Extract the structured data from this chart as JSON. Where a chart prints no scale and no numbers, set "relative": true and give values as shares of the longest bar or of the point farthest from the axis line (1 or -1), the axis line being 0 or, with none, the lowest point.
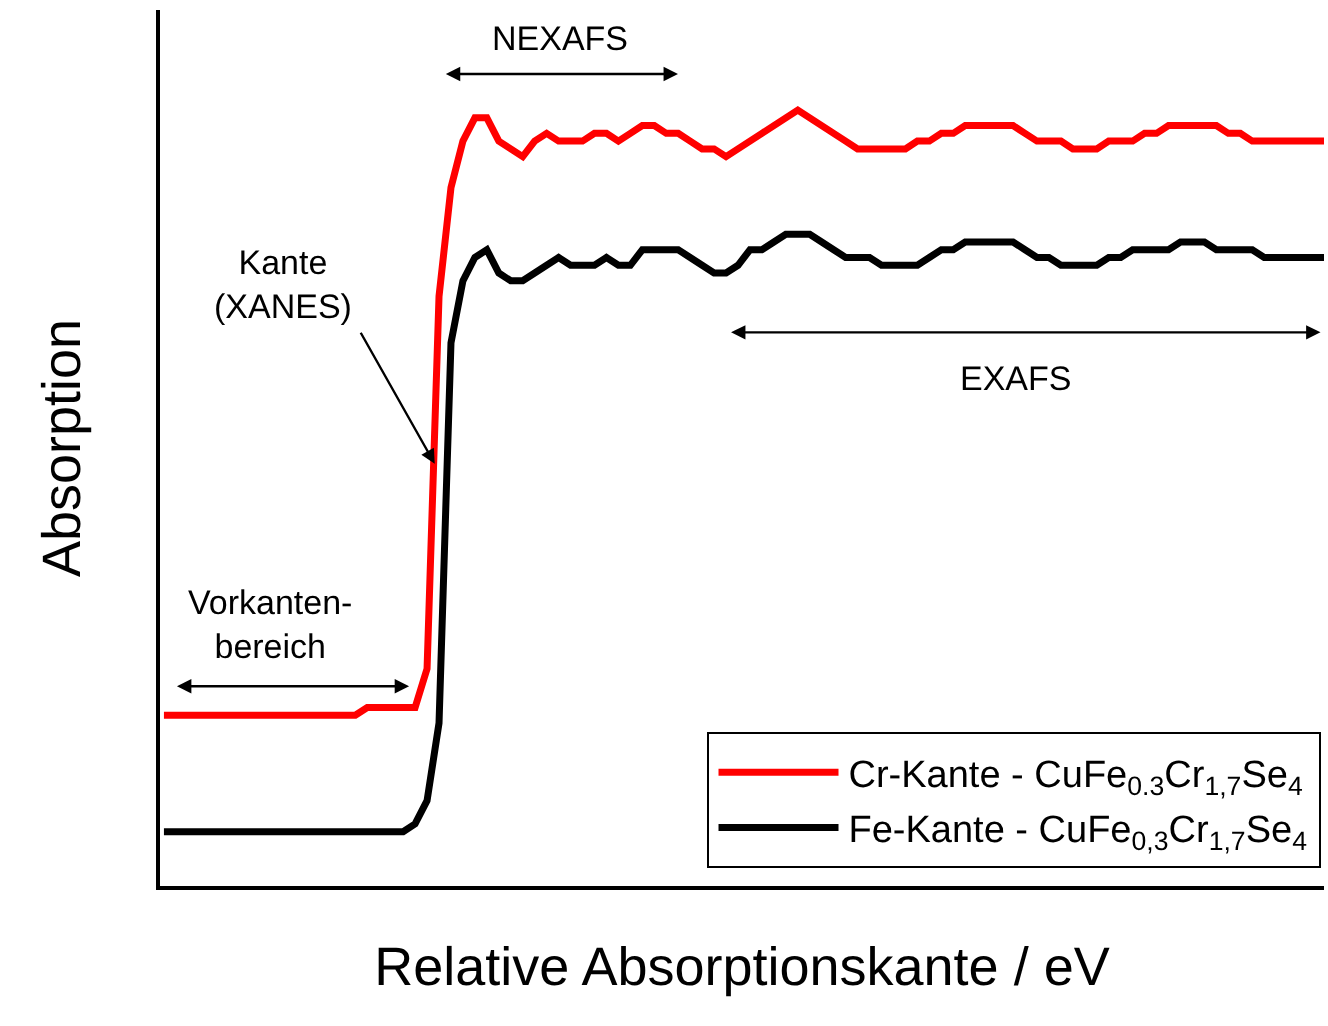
{
  "chart_data": {
    "type": "line",
    "relative": true,
    "tick_labels": false,
    "legend": "bottom right",
    "xlabel": "Relative Absorptionskante / eV",
    "ylabel": "Absorption",
    "annotations": [
      "NEXAFS",
      "Kante\n(XANES)",
      "EXAFS",
      "Vorkanten-\nbereich"
    ],
    "categories": [
      null,
      null,
      null,
      null,
      null,
      null,
      null,
      null,
      null,
      null,
      null,
      null,
      null,
      null,
      null,
      null,
      null,
      null,
      null,
      null,
      null,
      null,
      null,
      null,
      null,
      null,
      null,
      null,
      null,
      null,
      null,
      null,
      null,
      null,
      null,
      null,
      null,
      null,
      null,
      null,
      null,
      null,
      null,
      null,
      null,
      null,
      null,
      null,
      null,
      null,
      null,
      null,
      null,
      null,
      null,
      null,
      null,
      null,
      null,
      null,
      null,
      null,
      null,
      null,
      null,
      null,
      null,
      null,
      null,
      null,
      null,
      null,
      null,
      null,
      null,
      null,
      null,
      null,
      null,
      null,
      null,
      null,
      null,
      null,
      null,
      null,
      null,
      null,
      null,
      null,
      null,
      null,
      null,
      null,
      null,
      null,
      null,
      null
    ],
    "series": [
      {
        "name": "Cr-Kante - CuFe$_{0.3}$Cr$_{1,7}$Se$_{4}$",
        "color": "#ff0000",
        "values": [
          0.22,
          0.22,
          0.22,
          0.22,
          0.22,
          0.22,
          0.22,
          0.22,
          0.22,
          0.22,
          0.22,
          0.22,
          0.22,
          0.22,
          0.22,
          0.22,
          0.22,
          0.23,
          0.23,
          0.23,
          0.23,
          0.23,
          0.28,
          0.76,
          0.9,
          0.96,
          0.99,
          0.99,
          0.96,
          0.95,
          0.94,
          0.96,
          0.97,
          0.96,
          0.96,
          0.96,
          0.97,
          0.97,
          0.96,
          0.97,
          0.98,
          0.98,
          0.97,
          0.97,
          0.96,
          0.95,
          0.95,
          0.94,
          0.95,
          0.96,
          0.97,
          0.98,
          0.99,
          1.0,
          0.99,
          0.98,
          0.97,
          0.96,
          0.95,
          0.95,
          0.95,
          0.95,
          0.95,
          0.96,
          0.96,
          0.97,
          0.97,
          0.98,
          0.98,
          0.98,
          0.98,
          0.98,
          0.97,
          0.96,
          0.96,
          0.96,
          0.95,
          0.95,
          0.95,
          0.96,
          0.96,
          0.96,
          0.97,
          0.97,
          0.98,
          0.98,
          0.98,
          0.98,
          0.98,
          0.97,
          0.97,
          0.96,
          0.96,
          0.96,
          0.96,
          0.96,
          0.96,
          0.96
        ]
      },
      {
        "name": "Fe-Kante - CuFe$_{0,3}$Cr$_{1,7}$Se$_{4}$",
        "color": "#000000",
        "values": [
          0.07,
          0.07,
          0.07,
          0.07,
          0.07,
          0.07,
          0.07,
          0.07,
          0.07,
          0.07,
          0.07,
          0.07,
          0.07,
          0.07,
          0.07,
          0.07,
          0.07,
          0.07,
          0.07,
          0.07,
          0.07,
          0.08,
          0.11,
          0.21,
          0.7,
          0.78,
          0.81,
          0.82,
          0.79,
          0.78,
          0.78,
          0.79,
          0.8,
          0.81,
          0.8,
          0.8,
          0.8,
          0.81,
          0.8,
          0.8,
          0.82,
          0.82,
          0.82,
          0.82,
          0.81,
          0.8,
          0.79,
          0.79,
          0.8,
          0.82,
          0.82,
          0.83,
          0.84,
          0.84,
          0.84,
          0.83,
          0.82,
          0.81,
          0.81,
          0.81,
          0.8,
          0.8,
          0.8,
          0.8,
          0.81,
          0.82,
          0.82,
          0.83,
          0.83,
          0.83,
          0.83,
          0.83,
          0.82,
          0.81,
          0.81,
          0.8,
          0.8,
          0.8,
          0.8,
          0.81,
          0.81,
          0.82,
          0.82,
          0.82,
          0.82,
          0.83,
          0.83,
          0.83,
          0.82,
          0.82,
          0.82,
          0.82,
          0.81,
          0.81,
          0.81,
          0.81,
          0.81,
          0.81
        ]
      }
    ]
  }
}
